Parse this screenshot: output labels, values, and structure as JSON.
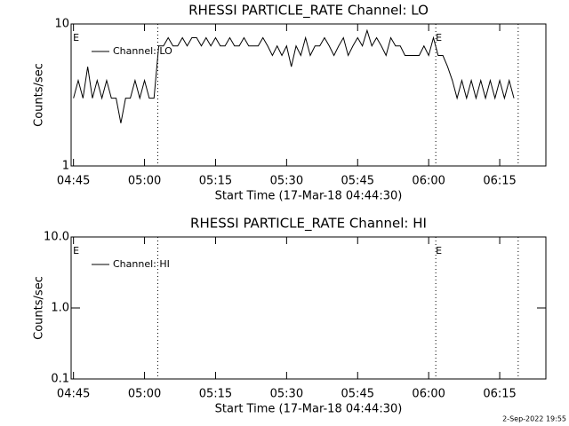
{
  "chart_data": [
    {
      "type": "line",
      "title": "RHESSI PARTICLE_RATE Channel: LO",
      "x_label": "Start Time (17-Mar-18 04:44:30)",
      "y_label": "Counts/sec",
      "log_y": true,
      "ylim": [
        1,
        10
      ],
      "yticks": [
        1,
        10
      ],
      "xlim": [
        284.5,
        384.75
      ],
      "xticks": [
        {
          "value": 285,
          "label": "04:45"
        },
        {
          "value": 300,
          "label": "05:00"
        },
        {
          "value": 315,
          "label": "05:15"
        },
        {
          "value": 330,
          "label": "05:30"
        },
        {
          "value": 345,
          "label": "05:45"
        },
        {
          "value": 360,
          "label": "06:00"
        },
        {
          "value": 375,
          "label": "06:15"
        }
      ],
      "vlines": [
        302.8,
        361.5,
        378.9
      ],
      "flags": [
        {
          "x": 284.9,
          "label": "E"
        },
        {
          "x": 361.5,
          "label": "E"
        }
      ],
      "x": [
        285,
        286,
        287,
        288,
        289,
        290,
        291,
        292,
        293,
        294,
        295,
        296,
        297,
        298,
        299,
        300,
        301,
        302,
        303,
        304,
        305,
        306,
        307,
        308,
        309,
        310,
        311,
        312,
        313,
        314,
        315,
        316,
        317,
        318,
        319,
        320,
        321,
        322,
        323,
        324,
        325,
        326,
        327,
        328,
        329,
        330,
        331,
        332,
        333,
        334,
        335,
        336,
        337,
        338,
        339,
        340,
        341,
        342,
        343,
        344,
        345,
        346,
        347,
        348,
        349,
        350,
        351,
        352,
        353,
        354,
        355,
        356,
        357,
        358,
        359,
        360,
        361,
        362,
        363,
        364,
        365,
        366,
        367,
        368,
        369,
        370,
        371,
        372,
        373,
        374,
        375,
        376,
        377,
        378
      ],
      "series": [
        {
          "name": "Channel: LO",
          "color": "#000000",
          "values": [
            3,
            4,
            3,
            5,
            3,
            4,
            3,
            4,
            3,
            3,
            2,
            3,
            3,
            4,
            3,
            4,
            3,
            3,
            7,
            7,
            8,
            7,
            7,
            8,
            7,
            8,
            8,
            7,
            8,
            7,
            8,
            7,
            7,
            8,
            7,
            7,
            8,
            7,
            7,
            7,
            8,
            7,
            6,
            7,
            6,
            7,
            5,
            7,
            6,
            8,
            6,
            7,
            7,
            8,
            7,
            6,
            7,
            8,
            6,
            7,
            8,
            7,
            9,
            7,
            8,
            7,
            6,
            8,
            7,
            7,
            6,
            6,
            6,
            6,
            7,
            6,
            8,
            6,
            6,
            5,
            4,
            3,
            4,
            3,
            4,
            3,
            4,
            3,
            4,
            3,
            4,
            3,
            4,
            3
          ]
        }
      ]
    },
    {
      "type": "line",
      "title": "RHESSI PARTICLE_RATE Channel: HI",
      "x_label": "Start Time (17-Mar-18 04:44:30)",
      "y_label": "Counts/sec",
      "log_y": true,
      "ylim": [
        0.1,
        10
      ],
      "yticks": [
        {
          "value": 0.1,
          "label": "0.1"
        },
        {
          "value": 1,
          "label": "1.0"
        },
        {
          "value": 10,
          "label": "10.0"
        }
      ],
      "xlim": [
        284.5,
        384.75
      ],
      "xticks": [
        {
          "value": 285,
          "label": "04:45"
        },
        {
          "value": 300,
          "label": "05:00"
        },
        {
          "value": 315,
          "label": "05:15"
        },
        {
          "value": 330,
          "label": "05:30"
        },
        {
          "value": 345,
          "label": "05:45"
        },
        {
          "value": 360,
          "label": "06:00"
        },
        {
          "value": 375,
          "label": "06:15"
        }
      ],
      "vlines": [
        302.8,
        361.5,
        378.9
      ],
      "flags": [
        {
          "x": 284.9,
          "label": "E"
        },
        {
          "x": 361.5,
          "label": "E"
        }
      ],
      "x": [],
      "series": [
        {
          "name": "Channel: HI",
          "color": "#000000",
          "values": []
        }
      ]
    }
  ],
  "footer": "2-Sep-2022 19:55"
}
